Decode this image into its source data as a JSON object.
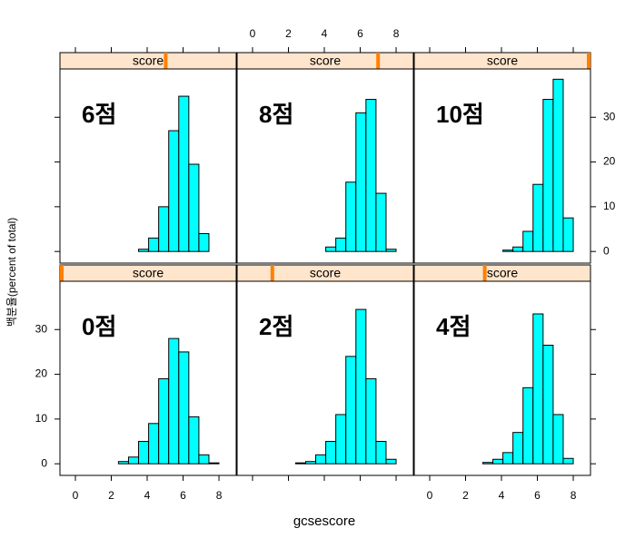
{
  "chart_data": {
    "type": "histogram",
    "xlabel": "gcsescore",
    "ylabel": "백분율(percent of total)",
    "xlim": [
      -0.86,
      8.96
    ],
    "ylim": [
      -2.6,
      40.8
    ],
    "xticks": [
      0,
      2,
      4,
      6,
      8
    ],
    "yticks": [
      0,
      10,
      20,
      30
    ],
    "bins": [
      -0.4,
      0.16,
      0.72,
      1.28,
      1.84,
      2.4,
      2.96,
      3.52,
      4.08,
      4.64,
      5.2,
      5.76,
      6.32,
      6.88,
      7.44,
      8.0
    ],
    "color": "#00ffff",
    "strip_color": "#ffe5cc",
    "level_color": "#ff8000",
    "level_lim": [
      0,
      10
    ],
    "panels": [
      {
        "strip": "score",
        "level": 0,
        "annotation": "0점",
        "values": [
          0,
          0,
          0,
          0,
          0,
          0.5,
          1.5,
          5,
          9,
          19,
          28,
          25,
          10.5,
          2,
          0.2
        ]
      },
      {
        "strip": "score",
        "level": 2,
        "annotation": "2점",
        "values": [
          0,
          0,
          0,
          0,
          0,
          0.2,
          0.5,
          2,
          5,
          11,
          24,
          34.5,
          19,
          5,
          1
        ]
      },
      {
        "strip": "score",
        "level": 4,
        "annotation": "4점",
        "values": [
          0,
          0,
          0,
          0,
          0,
          0,
          0.3,
          1,
          2.5,
          7,
          17,
          33.5,
          26.5,
          11,
          1.2
        ]
      },
      {
        "strip": "score",
        "level": 6,
        "annotation": "6점",
        "values": [
          0,
          0,
          0,
          0,
          0,
          0,
          0,
          0.5,
          3,
          10,
          27,
          34.7,
          19.5,
          4,
          0
        ]
      },
      {
        "strip": "score",
        "level": 8,
        "annotation": "8점",
        "values": [
          0,
          0,
          0,
          0,
          0,
          0,
          0,
          0,
          1,
          3,
          15.5,
          31,
          34,
          13,
          0.5
        ]
      },
      {
        "strip": "score",
        "level": 10,
        "annotation": "10점",
        "values": [
          0,
          0,
          0,
          0,
          0,
          0,
          0,
          0,
          0.3,
          1,
          4.5,
          15,
          34,
          38.5,
          7.5
        ]
      }
    ]
  }
}
